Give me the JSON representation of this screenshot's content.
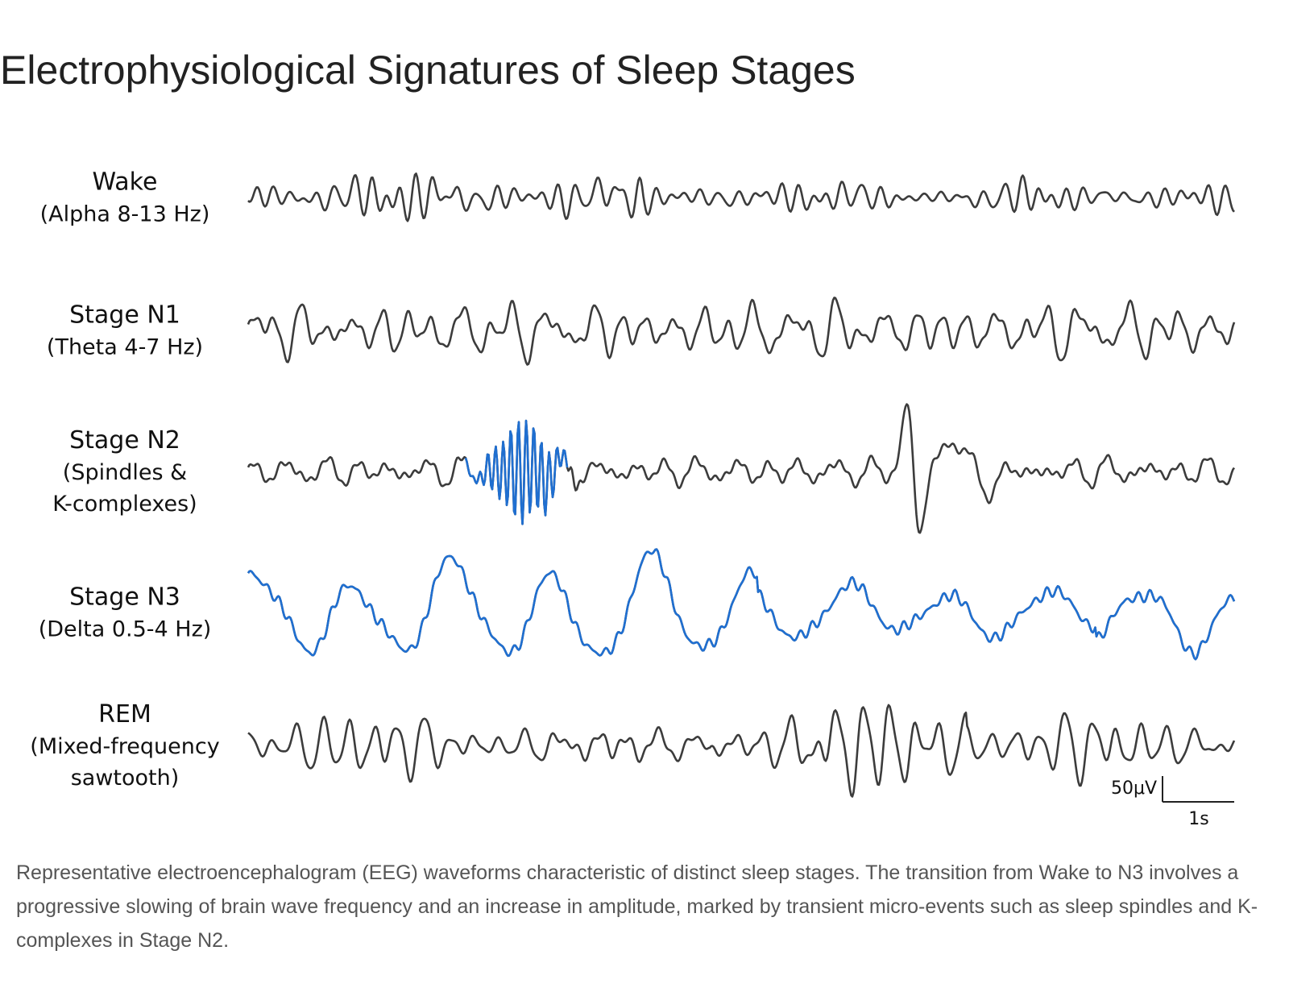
{
  "header": {
    "title": "Electrophysiological Signatures of Sleep Stages"
  },
  "rows": [
    {
      "label": [
        "Wake",
        "(Alpha 8-13 Hz)"
      ]
    },
    {
      "label": [
        "Stage N1",
        "(Theta 4-7 Hz)"
      ]
    },
    {
      "label": [
        "Stage N2",
        "(Spindles &",
        "K-complexes)"
      ]
    },
    {
      "label": [
        "Stage N3",
        "(Delta 0.5-4 Hz)"
      ]
    },
    {
      "label": [
        "REM",
        "(Mixed-frequency",
        "sawtooth)"
      ]
    }
  ],
  "scale_bar": {
    "amplitude": "50μV",
    "time": "1s"
  },
  "caption": "Representative electroencephalogram (EEG) waveforms characteristic of distinct sleep stages. The transition from Wake to N3 involves a progressive slowing of brain wave frequency and an increase in amplitude, marked by transient micro-events such as sleep spindles and K-complexes in Stage N2."
}
